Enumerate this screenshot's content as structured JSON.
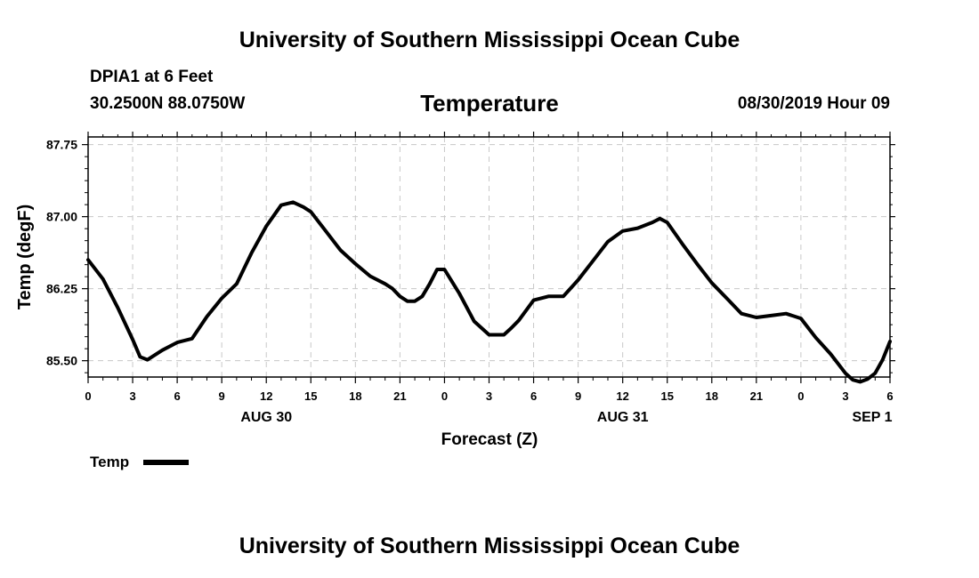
{
  "header": {
    "title_top": "University of Southern Mississippi Ocean Cube",
    "title_bottom": "University of Southern Mississippi Ocean Cube",
    "station": "DPIA1 at 6 Feet",
    "coordinates": "30.2500N 88.0750W",
    "datetime": "08/30/2019 Hour 09"
  },
  "legend": {
    "label": "Temp"
  },
  "colors": {
    "line": "#000000",
    "grid": "#c8c8c8",
    "background": "#ffffff"
  },
  "chart_data": {
    "type": "line",
    "title": "Temperature",
    "xlabel": "Forecast (Z)",
    "ylabel": "Temp (degF)",
    "x_unit": "forecast hour",
    "xlim": [
      0,
      54
    ],
    "ylim": [
      85.33,
      87.83
    ],
    "grid": true,
    "legend_position": "bottom-left",
    "x_ticks": [
      0,
      3,
      6,
      9,
      12,
      15,
      18,
      21,
      24,
      27,
      30,
      33,
      36,
      39,
      42,
      45,
      48,
      51,
      54
    ],
    "x_tick_labels": [
      "0",
      "3",
      "6",
      "9",
      "12",
      "15",
      "18",
      "21",
      "0",
      "3",
      "6",
      "9",
      "12",
      "15",
      "18",
      "21",
      "0",
      "3",
      "6"
    ],
    "date_labels": [
      {
        "x": 12,
        "label": "AUG 30"
      },
      {
        "x": 36,
        "label": "AUG 31"
      },
      {
        "x": 52.8,
        "label": "SEP 1"
      }
    ],
    "y_ticks": [
      85.5,
      86.25,
      87.0,
      87.75
    ],
    "y_tick_labels": [
      "85.50",
      "86.25",
      "87.00",
      "87.75"
    ],
    "series": [
      {
        "name": "Temp",
        "x": [
          0,
          1,
          2,
          3,
          3.5,
          4,
          5,
          6,
          7,
          8,
          9,
          10,
          11,
          12,
          13,
          13.8,
          14.5,
          15,
          16,
          17,
          18,
          19,
          20,
          20.5,
          21,
          21.5,
          22,
          22.5,
          23,
          23.5,
          24,
          25,
          26,
          27,
          28,
          28.5,
          29,
          30,
          31,
          32,
          33,
          34,
          35,
          36,
          37,
          38,
          38.5,
          39,
          40,
          41,
          42,
          43,
          44,
          45,
          46,
          47,
          48,
          49,
          50,
          51,
          51.5,
          52,
          52.5,
          53,
          53.5,
          54
        ],
        "y": [
          86.55,
          86.35,
          86.05,
          85.72,
          85.54,
          85.51,
          85.61,
          85.69,
          85.73,
          85.96,
          86.15,
          86.3,
          86.62,
          86.9,
          87.12,
          87.15,
          87.1,
          87.05,
          86.85,
          86.65,
          86.51,
          86.38,
          86.3,
          86.25,
          86.17,
          86.12,
          86.12,
          86.17,
          86.3,
          86.45,
          86.45,
          86.2,
          85.91,
          85.77,
          85.77,
          85.84,
          85.92,
          86.13,
          86.17,
          86.17,
          86.34,
          86.54,
          86.74,
          86.85,
          86.88,
          86.94,
          86.98,
          86.94,
          86.72,
          86.51,
          86.31,
          86.15,
          85.99,
          85.95,
          85.97,
          85.99,
          85.94,
          85.74,
          85.57,
          85.37,
          85.3,
          85.28,
          85.31,
          85.37,
          85.51,
          85.7
        ]
      }
    ]
  }
}
